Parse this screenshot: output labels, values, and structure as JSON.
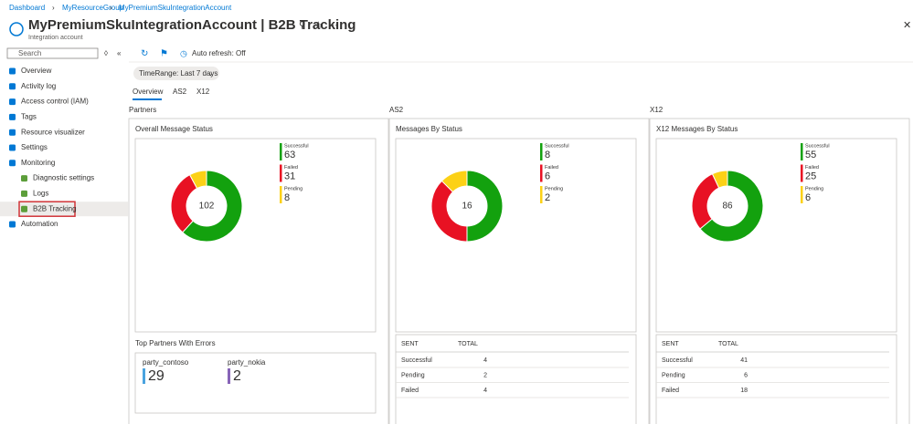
{
  "breadcrumb": [
    "Dashboard",
    "MyResourceGroup",
    "MyPremiumSkuIntegrationAccount"
  ],
  "header": {
    "title": "MyPremiumSkuIntegrationAccount | B2B Tracking",
    "subtitle": "Integration account"
  },
  "search": "Search",
  "toolbar": {
    "auto_refresh": "Auto refresh: Off"
  },
  "sidebar": [
    {
      "label": "Overview",
      "level": 0
    },
    {
      "label": "Activity log",
      "level": 0
    },
    {
      "label": "Access control (IAM)",
      "level": 0
    },
    {
      "label": "Tags",
      "level": 0
    },
    {
      "label": "Resource visualizer",
      "level": 0
    },
    {
      "label": "Settings",
      "level": 0
    },
    {
      "label": "Monitoring",
      "level": 0
    },
    {
      "label": "Diagnostic settings",
      "level": 1
    },
    {
      "label": "Logs",
      "level": 1
    },
    {
      "label": "B2B Tracking",
      "level": 1,
      "selected": true
    },
    {
      "label": "Automation",
      "level": 0
    }
  ],
  "filter": "TimeRange: Last 7 days",
  "tabs": [
    "Overview",
    "AS2",
    "X12"
  ],
  "sections": [
    {
      "name": "Partners",
      "chart": {
        "title": "Overall Message Status",
        "total": 102,
        "legend": [
          {
            "label": "Successful",
            "value": 63,
            "color": "#13a10e"
          },
          {
            "label": "Failed",
            "value": 31,
            "color": "#e81123"
          },
          {
            "label": "Pending",
            "value": 8,
            "color": "#fcd116"
          }
        ]
      },
      "partners": {
        "title": "Top Partners With Errors",
        "items": [
          {
            "name": "party_contoso",
            "value": 29,
            "color": "#4aa3df"
          },
          {
            "name": "party_nokia",
            "value": 2,
            "color": "#8764b8"
          }
        ]
      }
    },
    {
      "name": "AS2",
      "chart": {
        "title": "Messages By Status",
        "total": 16,
        "legend": [
          {
            "label": "Successful",
            "value": 8,
            "color": "#13a10e"
          },
          {
            "label": "Failed",
            "value": 6,
            "color": "#e81123"
          },
          {
            "label": "Pending",
            "value": 2,
            "color": "#fcd116"
          }
        ]
      },
      "table": {
        "columns": [
          "SENT",
          "TOTAL"
        ],
        "rows": [
          [
            "Successful",
            4
          ],
          [
            "Pending",
            2
          ],
          [
            "Failed",
            4
          ]
        ]
      }
    },
    {
      "name": "X12",
      "chart": {
        "title": "X12 Messages By Status",
        "total": 86,
        "legend": [
          {
            "label": "Successful",
            "value": 55,
            "color": "#13a10e"
          },
          {
            "label": "Failed",
            "value": 25,
            "color": "#e81123"
          },
          {
            "label": "Pending",
            "value": 6,
            "color": "#fcd116"
          }
        ]
      },
      "table": {
        "columns": [
          "SENT",
          "TOTAL"
        ],
        "rows": [
          [
            "Successful",
            41
          ],
          [
            "Pending",
            6
          ],
          [
            "Failed",
            18
          ]
        ]
      }
    }
  ]
}
